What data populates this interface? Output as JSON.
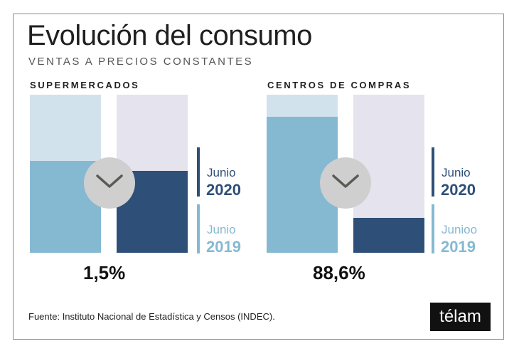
{
  "header": {
    "title": "Evolución del consumo",
    "subtitle": "VENTAS A PRECIOS CONSTANTES"
  },
  "chart_data": [
    {
      "type": "bar",
      "title": "SUPERMERCADOS",
      "change": "1,5%",
      "trend": "down",
      "series": [
        {
          "name": "Junio 2019",
          "value": 0.58
        },
        {
          "name": "Junio 2020",
          "value": 0.52
        }
      ],
      "legend": [
        {
          "label": "Junio",
          "year": "2020"
        },
        {
          "label": "Junio",
          "year": "2019"
        }
      ]
    },
    {
      "type": "bar",
      "title": "CENTROS DE COMPRAS",
      "change": "88,6%",
      "trend": "down",
      "series": [
        {
          "name": "Junio 2019",
          "value": 0.86
        },
        {
          "name": "Junio 2020",
          "value": 0.22
        }
      ],
      "legend": [
        {
          "label": "Junio",
          "year": "2020"
        },
        {
          "label": "Junioo",
          "year": "2019"
        }
      ]
    }
  ],
  "colors": {
    "bar_2019": "#85b9d2",
    "bar_2019_bg": "#d2e2ec",
    "bar_2020": "#2e4f78",
    "bar_2020_bg": "#e5e3ee",
    "chevron": "#5a5a55",
    "circle": "#cfcfcf"
  },
  "footer": {
    "source": "Fuente: Instituto Nacional de Estadística y Censos (INDEC).",
    "logo": "télam"
  }
}
